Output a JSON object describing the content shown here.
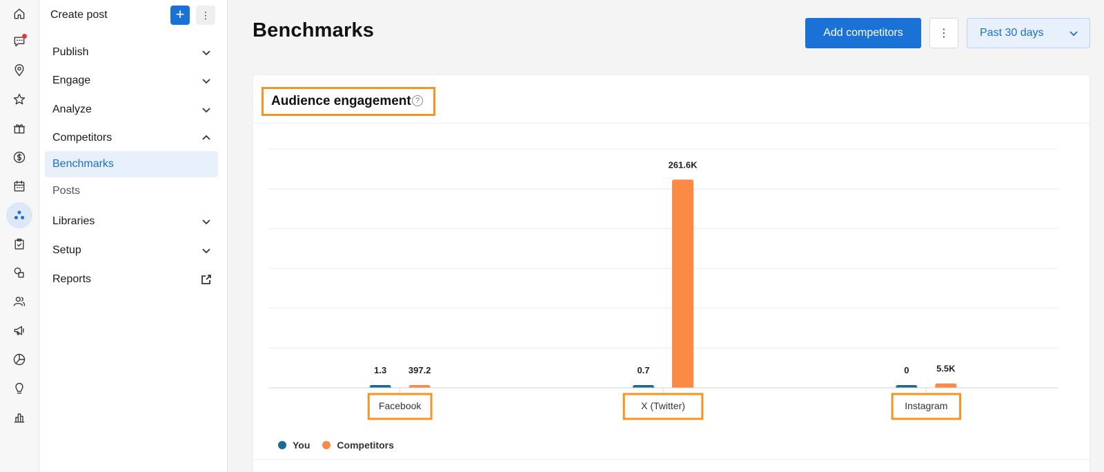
{
  "rail": {
    "icons": [
      "home-icon",
      "messages-icon",
      "location-pin-icon",
      "star-icon",
      "gift-icon",
      "dollar-icon",
      "calendar-icon",
      "competitors-icon",
      "task-check-icon",
      "shapes-icon",
      "people-icon",
      "megaphone-icon",
      "pie-chart-icon",
      "lightbulb-icon",
      "bar-chart-icon"
    ],
    "active": "competitors-icon"
  },
  "nav": {
    "create_post": "Create post",
    "create_plus": "+",
    "more": "⋮",
    "items": [
      {
        "label": "Publish"
      },
      {
        "label": "Engage"
      },
      {
        "label": "Analyze"
      },
      {
        "label": "Competitors"
      },
      {
        "label": "Benchmarks"
      },
      {
        "label": "Posts"
      },
      {
        "label": "Libraries"
      },
      {
        "label": "Setup"
      },
      {
        "label": "Reports"
      }
    ]
  },
  "header": {
    "title": "Benchmarks",
    "add_competitors": "Add competitors",
    "kebab": "⋮",
    "date_range": "Past 30 days"
  },
  "card": {
    "title": "Audience engagement",
    "help": "?"
  },
  "colors": {
    "you": "#1a6b8f",
    "competitors": "#fb8a44",
    "accent": "#1b72d6",
    "highlight": "#f7931e"
  },
  "chart_data": {
    "type": "bar",
    "title": "Audience engagement",
    "categories": [
      "Facebook",
      "X (Twitter)",
      "Instagram"
    ],
    "series": [
      {
        "name": "You",
        "values": [
          1.3,
          0.7,
          0
        ],
        "labels": [
          "1.3",
          "0.7",
          "0"
        ]
      },
      {
        "name": "Competitors",
        "values": [
          397.2,
          261600,
          5500
        ],
        "labels": [
          "397.2",
          "261.6K",
          "5.5K"
        ]
      }
    ],
    "ylim": [
      0,
      300000
    ],
    "grid": true,
    "legend": "bottom-left"
  }
}
